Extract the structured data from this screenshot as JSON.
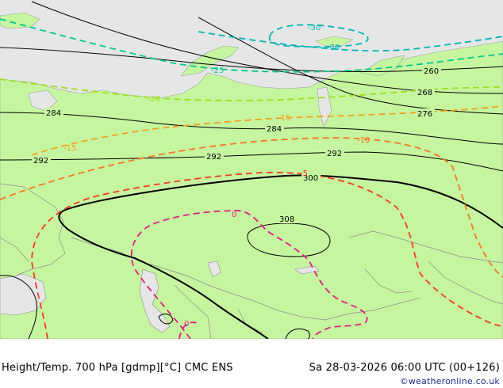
{
  "footer": {
    "title": "Height/Temp. 700 hPa [gdmp][°C] CMC ENS",
    "datetime": "Sa 28-03-2026 06:00 UTC (00+126)",
    "credit": "©weatheronline.co.uk"
  },
  "height_labels": [
    "260",
    "268",
    "276",
    "284",
    "284",
    "292",
    "292",
    "292",
    "300",
    "308"
  ],
  "temp_labels": [
    "-30",
    "-30",
    "-25",
    "-20",
    "-15",
    "-15",
    "-10",
    "-5",
    "0",
    "0"
  ],
  "colors": {
    "land": "#c6f5a0",
    "sea": "#e6e6e6",
    "height_contour": "#000000",
    "t_minus30": "#00b4b4",
    "t_minus25": "#00c88c",
    "t_minus20": "#a0dc1e",
    "t_minus15": "#f0a01e",
    "t_minus10": "#f07820",
    "t_minus5": "#f03c20",
    "t_zero": "#dc1e82"
  }
}
